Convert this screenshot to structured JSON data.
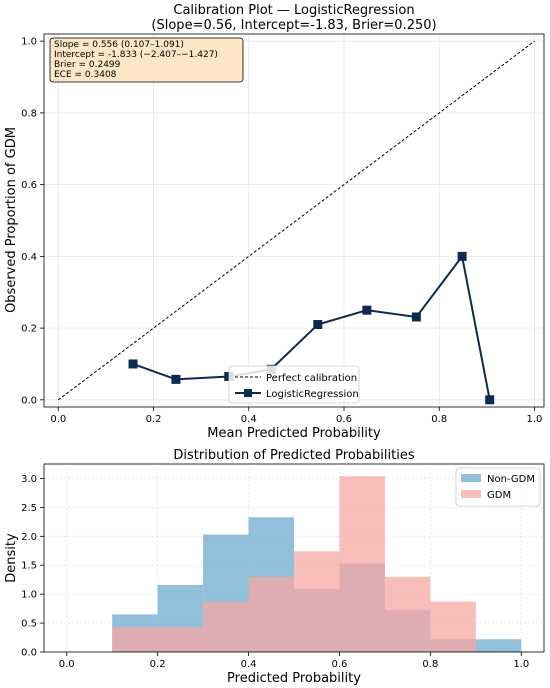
{
  "chart_data": [
    {
      "type": "line",
      "title": "Calibration Plot — LogisticRegression",
      "subtitle": "(Slope=0.56, Intercept=-1.83, Brier=0.250)",
      "xlabel": "Mean Predicted Probability",
      "ylabel": "Observed Proportion of GDM",
      "xlim": [
        -0.03,
        1.02
      ],
      "ylim": [
        -0.02,
        1.02
      ],
      "xticks": [
        "0.0",
        "0.2",
        "0.4",
        "0.6",
        "0.8",
        "1.0"
      ],
      "yticks": [
        "0.0",
        "0.2",
        "0.4",
        "0.6",
        "0.8",
        "1.0"
      ],
      "grid": true,
      "legend_position": "lower-center",
      "series": [
        {
          "name": "Perfect calibration",
          "style": "dashed",
          "color": "#000000",
          "x": [
            0,
            1
          ],
          "y": [
            0,
            1
          ]
        },
        {
          "name": "LogisticRegression",
          "style": "solid-square-markers",
          "color": "#0d2b4e",
          "x": [
            0.157,
            0.247,
            0.358,
            0.447,
            0.545,
            0.648,
            0.752,
            0.848,
            0.906
          ],
          "y": [
            0.1,
            0.057,
            0.065,
            0.085,
            0.21,
            0.25,
            0.231,
            0.4,
            0.0
          ]
        }
      ],
      "annotation_lines": [
        "Slope = 0.556 (0.107–1.091)",
        "Intercept = -1.833 (−2.407–−1.427)",
        "Brier = 0.2499",
        "ECE = 0.3408"
      ],
      "annotation_bg": "#fde7c6"
    },
    {
      "type": "histogram",
      "title": "Distribution of Predicted Probabilities",
      "xlabel": "Predicted Probability",
      "ylabel": "Density",
      "xlim": [
        -0.05,
        1.05
      ],
      "ylim": [
        0,
        3.25
      ],
      "xticks": [
        "0.0",
        "0.2",
        "0.4",
        "0.6",
        "0.8",
        "1.0"
      ],
      "yticks": [
        "0.0",
        "0.5",
        "1.0",
        "1.5",
        "2.0",
        "2.5",
        "3.0"
      ],
      "grid": true,
      "legend_position": "top-right",
      "bin_edges": [
        0.1,
        0.2,
        0.3,
        0.4,
        0.5,
        0.6,
        0.7,
        0.8,
        0.9,
        1.0
      ],
      "series": [
        {
          "name": "Non-GDM",
          "color": "#7fb5d5",
          "values": [
            0.65,
            1.16,
            2.03,
            2.33,
            1.09,
            1.53,
            0.72,
            0.22,
            0.22
          ]
        },
        {
          "name": "GDM",
          "color": "#f7a7a3",
          "values": [
            0.43,
            0.43,
            0.87,
            1.3,
            1.74,
            3.04,
            1.3,
            0.87,
            0.0
          ]
        }
      ]
    }
  ]
}
